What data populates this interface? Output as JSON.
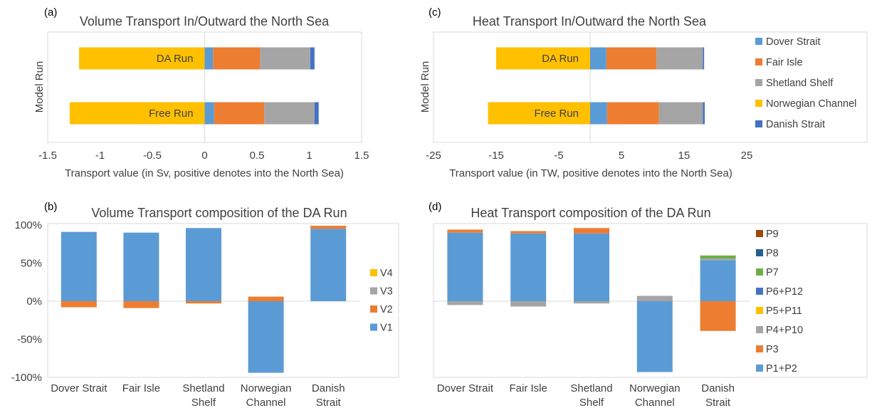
{
  "chart_data": [
    {
      "panel": "(a)",
      "type": "bar",
      "orientation": "horizontal",
      "stacked": true,
      "title": "Volume Transport In/Outward the North Sea",
      "xlabel": "Transport value (in Sv, positive denotes into the North Sea)",
      "ylabel": "Model Run",
      "categories": [
        "DA Run",
        "Free Run"
      ],
      "xlim": [
        -1.5,
        1.5
      ],
      "xticks": [
        -1.5,
        -1,
        -0.5,
        0,
        0.5,
        1,
        1.5
      ],
      "xtick_labels": [
        "-1.5",
        "-1",
        "-0.5",
        "0",
        "0.5",
        "1",
        "1.5"
      ],
      "series": [
        {
          "name": "Dover Strait",
          "color": "#5B9BD5",
          "values": [
            0.08,
            0.09
          ]
        },
        {
          "name": "Fair Isle",
          "color": "#ED7D31",
          "values": [
            0.45,
            0.48
          ]
        },
        {
          "name": "Shetland Shelf",
          "color": "#A5A5A5",
          "values": [
            0.48,
            0.48
          ]
        },
        {
          "name": "Norwegian Channel",
          "color": "#FFC000",
          "values": [
            -1.2,
            -1.29
          ]
        },
        {
          "name": "Danish Strait",
          "color": "#4472C4",
          "values": [
            0.04,
            0.04
          ]
        }
      ]
    },
    {
      "panel": "(c)",
      "type": "bar",
      "orientation": "horizontal",
      "stacked": true,
      "title": "Heat Transport In/Outward the North Sea",
      "xlabel": "Transport value (in TW, positive denotes into the North Sea)",
      "ylabel": "Model Run",
      "categories": [
        "DA Run",
        "Free Run"
      ],
      "xlim": [
        -25,
        25
      ],
      "xticks": [
        -25,
        -15,
        -5,
        5,
        15,
        25
      ],
      "xtick_labels": [
        "-25",
        "-15",
        "-5",
        "5",
        "15",
        "25"
      ],
      "legend_position": "right",
      "series": [
        {
          "name": "Dover Strait",
          "color": "#5B9BD5",
          "values": [
            2.6,
            2.7
          ]
        },
        {
          "name": "Fair Isle",
          "color": "#ED7D31",
          "values": [
            8.0,
            8.3
          ]
        },
        {
          "name": "Shetland Shelf",
          "color": "#A5A5A5",
          "values": [
            7.4,
            7.0
          ]
        },
        {
          "name": "Norwegian Channel",
          "color": "#FFC000",
          "values": [
            -15.0,
            -16.3
          ]
        },
        {
          "name": "Danish Strait",
          "color": "#4472C4",
          "values": [
            0.2,
            0.3
          ]
        }
      ]
    },
    {
      "panel": "(b)",
      "type": "bar",
      "stacked": true,
      "title": "Volume Transport composition of the DA Run",
      "xlabel": "",
      "ylabel": "",
      "categories": [
        "Dover Strait",
        "Fair Isle",
        "Shetland Shelf",
        "Norwegian Channel",
        "Danish Strait"
      ],
      "category_labels": [
        [
          "Dover Strait"
        ],
        [
          "Fair Isle"
        ],
        [
          "Shetland",
          "Shelf"
        ],
        [
          "Norwegian",
          "Channel"
        ],
        [
          "Danish",
          "Strait"
        ]
      ],
      "ylim": [
        -100,
        100
      ],
      "yticks": [
        -100,
        -50,
        0,
        50,
        100
      ],
      "ytick_labels": [
        "-100%",
        "-50%",
        "0%",
        "50%",
        "100%"
      ],
      "legend_position": "right",
      "series": [
        {
          "name": "V1",
          "color": "#5B9BD5",
          "values": [
            91,
            90,
            96,
            -94,
            95
          ]
        },
        {
          "name": "V2",
          "color": "#ED7D31",
          "values": [
            -8,
            -9,
            -3,
            6,
            4
          ]
        },
        {
          "name": "V3",
          "color": "#A5A5A5",
          "values": [
            0,
            0,
            0,
            0,
            0
          ]
        },
        {
          "name": "V4",
          "color": "#FFC000",
          "values": [
            0,
            0,
            0,
            0,
            0
          ]
        }
      ]
    },
    {
      "panel": "(d)",
      "type": "bar",
      "stacked": true,
      "title": "Heat Transport composition of the DA Run",
      "xlabel": "",
      "ylabel": "",
      "categories": [
        "Dover Strait",
        "Fair Isle",
        "Shetland Shelf",
        "Norwegian Channel",
        "Danish Strait"
      ],
      "category_labels": [
        [
          "Dover Strait"
        ],
        [
          "Fair Isle"
        ],
        [
          "Shetland",
          "Shelf"
        ],
        [
          "Norwegian",
          "Channel"
        ],
        [
          "Danish",
          "Strait"
        ]
      ],
      "ylim": [
        -100,
        100
      ],
      "legend_position": "right",
      "series": [
        {
          "name": "P1+P2",
          "color": "#5B9BD5",
          "values": [
            90,
            89,
            89,
            -93,
            54
          ]
        },
        {
          "name": "P3",
          "color": "#ED7D31",
          "values": [
            4,
            3,
            7,
            0,
            -39
          ]
        },
        {
          "name": "P4+P10",
          "color": "#A5A5A5",
          "values": [
            -5,
            -7,
            -3,
            7,
            2
          ]
        },
        {
          "name": "P5+P11",
          "color": "#FFC000",
          "values": [
            0,
            0,
            0,
            0,
            0
          ]
        },
        {
          "name": "P6+P12",
          "color": "#4472C4",
          "values": [
            0,
            0,
            0,
            0,
            0
          ]
        },
        {
          "name": "P7",
          "color": "#70AD47",
          "values": [
            0,
            0,
            0,
            0,
            4
          ]
        },
        {
          "name": "P8",
          "color": "#255E91",
          "values": [
            0,
            0,
            0,
            0,
            0
          ]
        },
        {
          "name": "P9",
          "color": "#9E480E",
          "values": [
            0,
            0,
            0,
            0,
            0
          ]
        }
      ]
    }
  ]
}
